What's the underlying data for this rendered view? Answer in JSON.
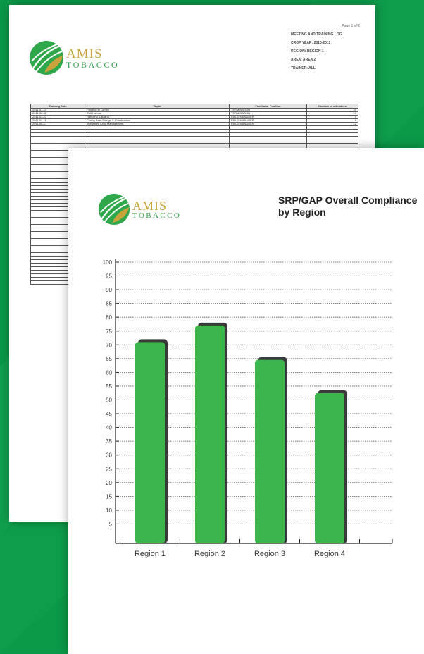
{
  "background": {
    "color": "#0b9a48"
  },
  "logo": {
    "line1": "AMIS",
    "line2": "TOBACCO"
  },
  "back_sheet": {
    "page_number": "Page 1 of 2",
    "meta": [
      "MEETING AND TRAINING LOG",
      "CROP YEAR: 2010-2011",
      "REGION: REGION 1",
      "AREA: AREA 2",
      "TRAINER: ALL"
    ],
    "table": {
      "headers": [
        "Training Date",
        "Topic",
        "Facilitator Position",
        "Number of attendees"
      ],
      "rows": [
        [
          "2011-01-14",
          "Planting in Lumps",
          "TERMINATION",
          "20"
        ],
        [
          "2011-02-02",
          "Child labour",
          "TERMINATION",
          "10"
        ],
        [
          "2011-03-22",
          "Handling & Baling",
          "FIELD MANAGER",
          "9"
        ],
        [
          "2011-04-11",
          "Curing Barn Design & Construction",
          "FIELD MANAGER",
          "9"
        ],
        [
          "2011-05-17",
          "Integrated Crop Management",
          "FIELD MANAGER",
          "12"
        ]
      ]
    }
  },
  "chart_data": {
    "type": "bar",
    "title": "SRP/GAP Overall Compliance by Region",
    "categories": [
      "Region 1",
      "Region 2",
      "Region 3",
      "Region 4"
    ],
    "values": [
      71,
      77,
      64.5,
      52.5
    ],
    "ylim": [
      0,
      100
    ],
    "yticks": [
      5,
      10,
      15,
      20,
      25,
      30,
      35,
      40,
      45,
      50,
      55,
      60,
      65,
      70,
      75,
      80,
      85,
      90,
      95,
      100
    ],
    "grid": true,
    "colors": {
      "bar": "#3cb54a",
      "bar_shadow": "#3a3a3a",
      "grid": "#555555"
    }
  }
}
